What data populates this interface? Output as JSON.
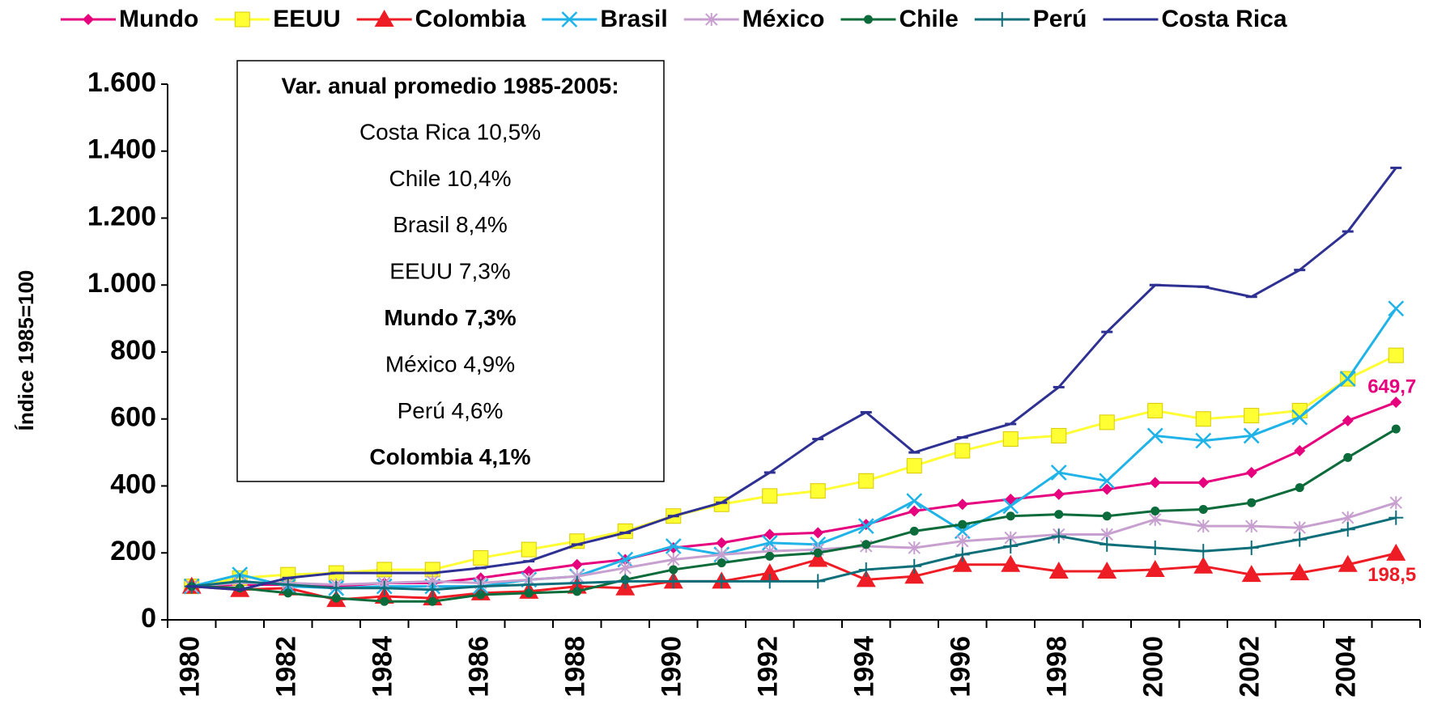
{
  "chart_data": {
    "type": "line",
    "y_axis_label": "Índice 1985=100",
    "categories": [
      "1980",
      null,
      "1982",
      null,
      "1984",
      null,
      "1986",
      null,
      "1988",
      null,
      "1990",
      null,
      "1992",
      null,
      "1994",
      null,
      "1996",
      null,
      "1998",
      null,
      "2000",
      null,
      "2002",
      null,
      "2004",
      null
    ],
    "ylim": [
      0,
      1600
    ],
    "yticks": [
      0,
      200,
      400,
      600,
      800,
      {
        "value": 1000,
        "label": "1.000"
      },
      {
        "value": 1200,
        "label": "1.200"
      },
      {
        "value": 1400,
        "label": "1.400"
      },
      {
        "value": 1600,
        "label": "1.600"
      }
    ],
    "legend": "top",
    "series": [
      {
        "name": "Mundo",
        "color": "#e6007e",
        "marker": "diamond",
        "values": [
          100,
          105,
          105,
          100,
          110,
          110,
          125,
          145,
          165,
          180,
          215,
          230,
          255,
          260,
          285,
          325,
          345,
          360,
          375,
          390,
          410,
          410,
          440,
          505,
          595,
          649.7
        ],
        "value_labels": [
          null,
          null,
          null,
          null,
          null,
          null,
          null,
          null,
          null,
          null,
          null,
          null,
          null,
          null,
          null,
          null,
          null,
          null,
          null,
          null,
          null,
          null,
          null,
          null,
          null,
          "649,7"
        ]
      },
      {
        "name": "EEUU",
        "color": "#ffff33",
        "marker": "square",
        "values": [
          100,
          125,
          135,
          140,
          150,
          150,
          185,
          210,
          235,
          265,
          310,
          345,
          370,
          385,
          415,
          460,
          505,
          540,
          550,
          590,
          625,
          600,
          610,
          625,
          720,
          790
        ]
      },
      {
        "name": "Colombia",
        "color": "#ee1c25",
        "marker": "triangle",
        "values": [
          100,
          90,
          95,
          60,
          70,
          65,
          80,
          85,
          100,
          95,
          115,
          115,
          140,
          180,
          120,
          130,
          165,
          165,
          145,
          145,
          150,
          160,
          135,
          140,
          165,
          198.5
        ],
        "value_labels": [
          null,
          null,
          null,
          null,
          null,
          null,
          null,
          null,
          null,
          null,
          null,
          null,
          null,
          null,
          null,
          null,
          null,
          null,
          null,
          null,
          null,
          null,
          null,
          null,
          null,
          "198,5"
        ]
      },
      {
        "name": "Brasil",
        "color": "#1fb3e8",
        "marker": "x",
        "values": [
          100,
          135,
          100,
          95,
          100,
          100,
          100,
          120,
          130,
          180,
          220,
          195,
          230,
          225,
          280,
          355,
          265,
          340,
          440,
          415,
          550,
          535,
          550,
          605,
          720,
          930
        ]
      },
      {
        "name": "México",
        "color": "#c8a0d0",
        "marker": "asterisk",
        "values": [
          100,
          110,
          110,
          105,
          110,
          115,
          110,
          120,
          130,
          155,
          180,
          195,
          205,
          210,
          220,
          215,
          235,
          245,
          255,
          255,
          300,
          280,
          280,
          275,
          305,
          350
        ]
      },
      {
        "name": "Chile",
        "color": "#0b6b3a",
        "marker": "circle",
        "values": [
          100,
          95,
          80,
          65,
          55,
          55,
          75,
          80,
          85,
          120,
          150,
          170,
          190,
          200,
          225,
          265,
          285,
          310,
          315,
          310,
          325,
          330,
          350,
          395,
          485,
          570
        ]
      },
      {
        "name": "Perú",
        "color": "#0e6f7a",
        "marker": "plus",
        "values": [
          100,
          115,
          105,
          95,
          95,
          90,
          100,
          105,
          110,
          115,
          115,
          115,
          115,
          115,
          150,
          160,
          195,
          220,
          250,
          225,
          215,
          205,
          215,
          240,
          270,
          305
        ]
      },
      {
        "name": "Costa Rica",
        "color": "#2e3192",
        "marker": "dash",
        "values": [
          100,
          90,
          125,
          140,
          140,
          140,
          155,
          175,
          225,
          260,
          310,
          350,
          440,
          540,
          620,
          500,
          545,
          585,
          695,
          860,
          1000,
          995,
          965,
          1045,
          1160,
          1350
        ]
      }
    ],
    "annotation": {
      "title": "Var. anual promedio 1985-2005:",
      "lines": [
        {
          "text": "Costa Rica 10,5%",
          "bold": false
        },
        {
          "text": "Chile 10,4%",
          "bold": false
        },
        {
          "text": "Brasil 8,4%",
          "bold": false
        },
        {
          "text": "EEUU 7,3%",
          "bold": false
        },
        {
          "text": "Mundo 7,3%",
          "bold": true
        },
        {
          "text": "México 4,9%",
          "bold": false
        },
        {
          "text": "Perú 4,6%",
          "bold": false
        },
        {
          "text": "Colombia 4,1%",
          "bold": true
        }
      ]
    }
  }
}
